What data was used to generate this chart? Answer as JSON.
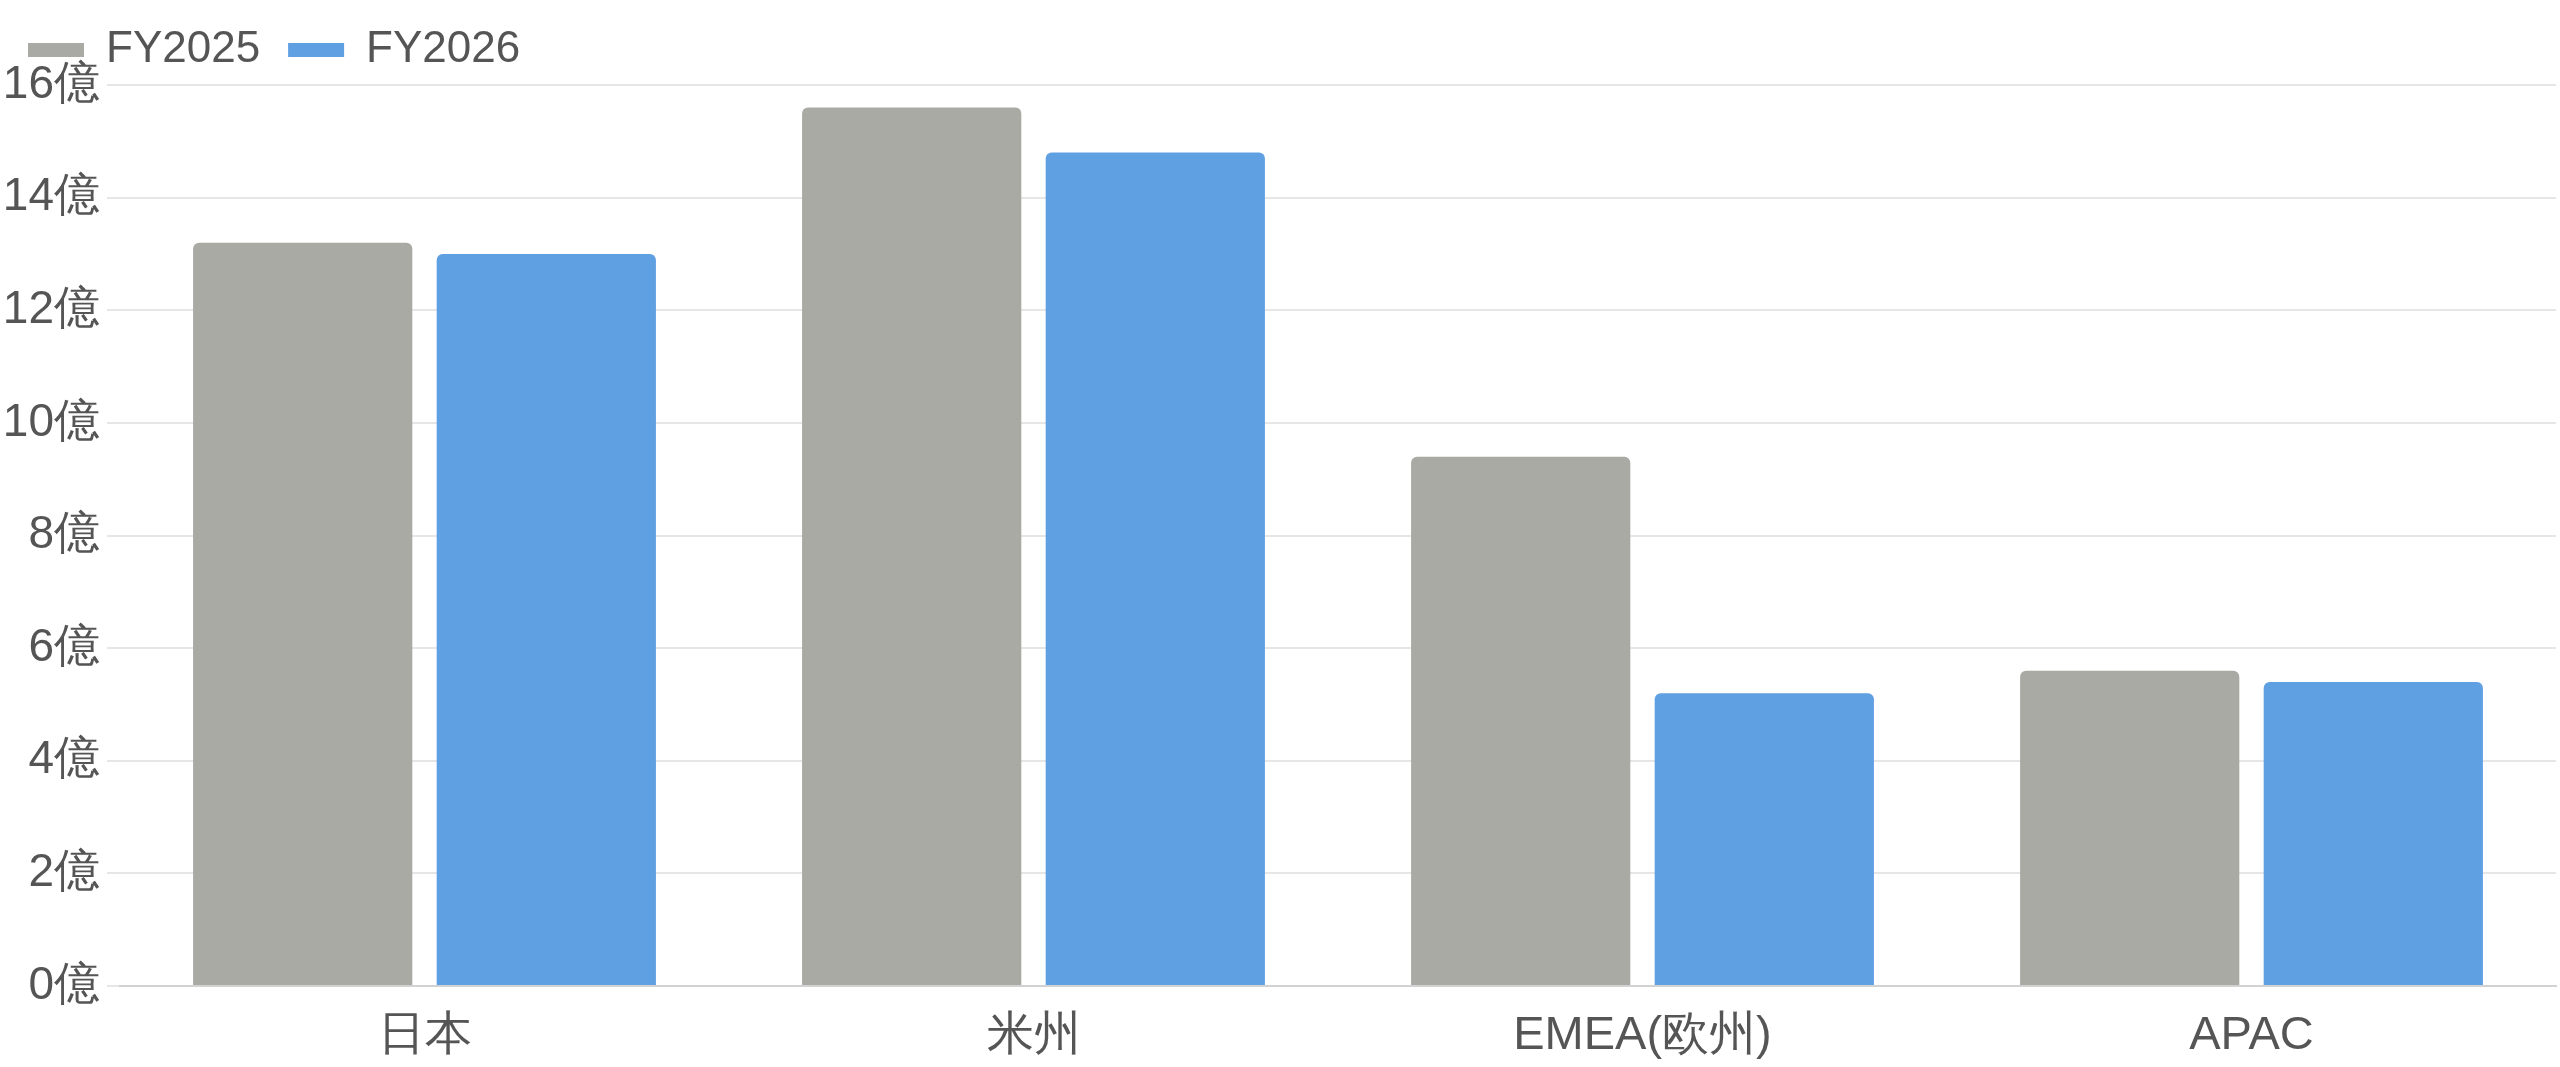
{
  "chart_data": {
    "type": "bar",
    "categories": [
      "日本",
      "米州",
      "EMEA(欧州)",
      "APAC"
    ],
    "series": [
      {
        "name": "FY2025",
        "color": "#a9aaa4",
        "values": [
          13.2,
          15.6,
          9.4,
          5.6
        ]
      },
      {
        "name": "FY2026",
        "color": "#5fa0e3",
        "values": [
          13.0,
          14.8,
          5.2,
          5.4
        ]
      }
    ],
    "ylim": [
      0,
      16
    ],
    "yticks": [
      {
        "value": 0,
        "label": "0億"
      },
      {
        "value": 2,
        "label": "2億"
      },
      {
        "value": 4,
        "label": "4億"
      },
      {
        "value": 6,
        "label": "6億"
      },
      {
        "value": 8,
        "label": "8億"
      },
      {
        "value": 10,
        "label": "10億"
      },
      {
        "value": 12,
        "label": "12億"
      },
      {
        "value": 14,
        "label": "14億"
      },
      {
        "value": 16,
        "label": "16億"
      }
    ],
    "grid": "y",
    "legend": "top left"
  }
}
